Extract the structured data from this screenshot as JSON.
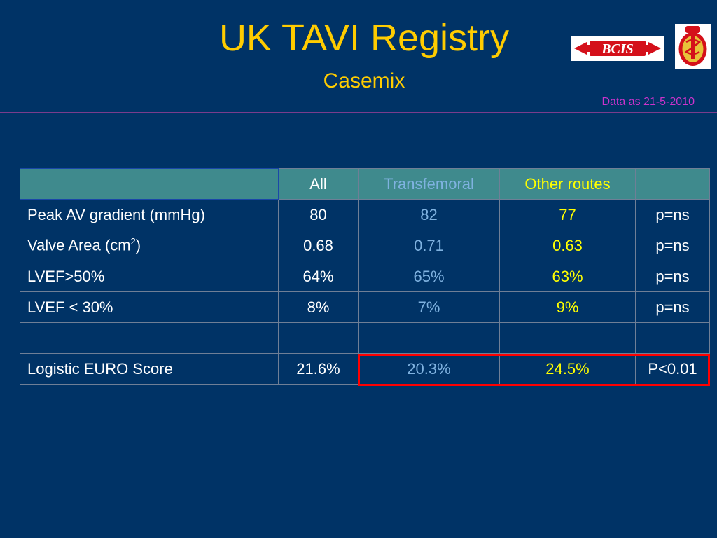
{
  "slide": {
    "title": "UK TAVI Registry",
    "subtitle": "Casemix",
    "date_note": "Data as 21-5-2010",
    "logos": {
      "bcis": "BCIS",
      "crest": "crest"
    }
  },
  "table": {
    "headers": [
      "",
      "All",
      "Transfemoral",
      "Other routes",
      ""
    ],
    "rows": [
      {
        "label": "Peak AV gradient (mmHg)",
        "all": "80",
        "transfemoral": "82",
        "other": "77",
        "p": "p=ns"
      },
      {
        "label_prefix": "Valve Area (cm",
        "label_sup": "2",
        "label_suffix": ")",
        "all": "0.68",
        "transfemoral": "0.71",
        "other": "0.63",
        "p": "p=ns"
      },
      {
        "label": "LVEF>50%",
        "all": "64%",
        "transfemoral": "65%",
        "other": "63%",
        "p": "p=ns"
      },
      {
        "label": "LVEF < 30%",
        "all": "8%",
        "transfemoral": "7%",
        "other": "9%",
        "p": "p=ns"
      },
      {
        "label": "",
        "all": "",
        "transfemoral": "",
        "other": "",
        "p": ""
      },
      {
        "label": "Logistic EURO Score",
        "all": "21.6%",
        "transfemoral": "20.3%",
        "other": "24.5%",
        "p": "P<0.01"
      }
    ]
  },
  "colors": {
    "background": "#003366",
    "title": "#FFCC00",
    "header_bg": "#3F8A8D",
    "transfemoral_text": "#7fb2e0",
    "other_routes_text": "#FFFF00",
    "highlight_border": "#FF0000"
  }
}
